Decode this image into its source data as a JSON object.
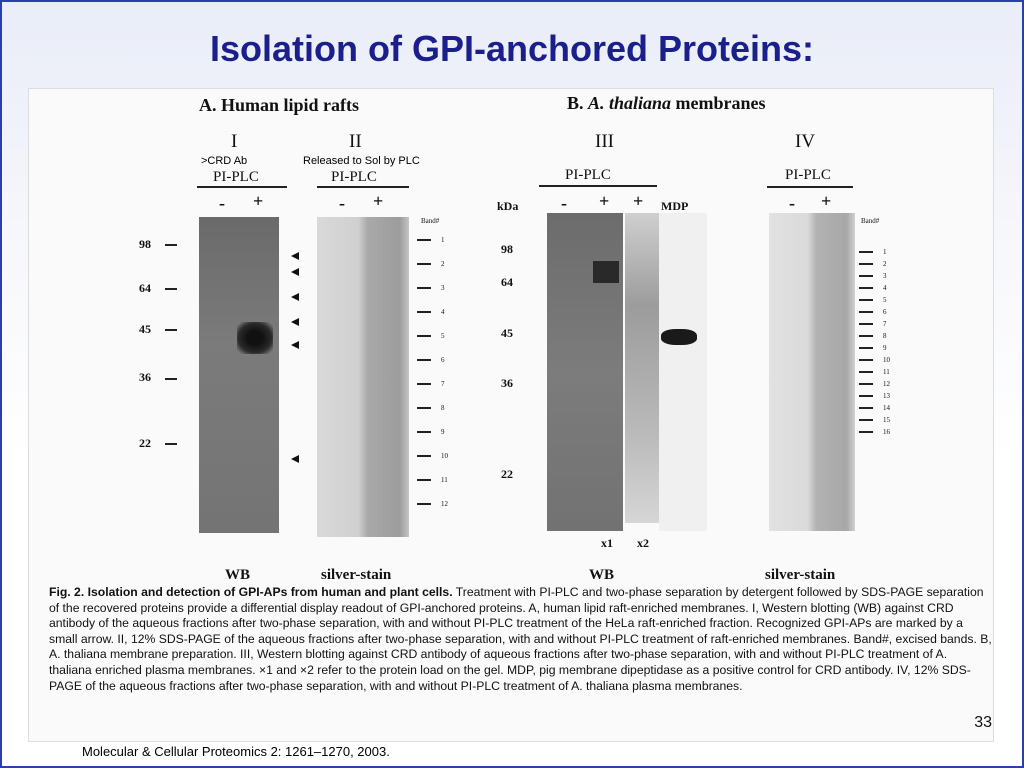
{
  "slide": {
    "title": "Isolation of GPI-anchored Proteins:",
    "page_number": "33",
    "source": "Molecular & Cellular Proteomics 2: 1261–1270, 2003."
  },
  "figure": {
    "panel_a_title": "A. Human lipid rafts",
    "panel_b_prefix": "B.",
    "panel_b_species": "A. thaliana",
    "panel_b_suffix": "membranes",
    "gels": {
      "I": {
        "label": "I",
        "treatment": "PI-PLC",
        "minus": "-",
        "plus": "+",
        "footer": "WB",
        "note": ">CRD Ab"
      },
      "II": {
        "label": "II",
        "treatment": "PI-PLC",
        "minus": "-",
        "plus": "+",
        "footer": "silver-stain",
        "note": "Released to Sol by PLC",
        "band_header": "Band#",
        "bands": [
          "1",
          "2",
          "3",
          "4",
          "5",
          "6",
          "7",
          "8",
          "9",
          "10",
          "11",
          "12"
        ]
      },
      "III": {
        "label": "III",
        "treatment": "PI-PLC",
        "minus": "-",
        "plus": "+",
        "plus2": "+",
        "mdp": "MDP",
        "kda": "kDa",
        "footer": "WB",
        "load1": "x1",
        "load2": "x2"
      },
      "IV": {
        "label": "IV",
        "treatment": "PI-PLC",
        "minus": "-",
        "plus": "+",
        "footer": "silver-stain",
        "band_header": "Band#",
        "bands": [
          "1",
          "2",
          "3",
          "4",
          "5",
          "6",
          "7",
          "8",
          "9",
          "10",
          "11",
          "12",
          "13",
          "14",
          "15",
          "16"
        ]
      }
    },
    "markers_a": [
      "98",
      "64",
      "45",
      "36",
      "22"
    ],
    "markers_b": [
      "98",
      "64",
      "45",
      "36",
      "22"
    ],
    "caption": {
      "fig_label": "Fig. 2.",
      "fig_title": "Isolation and detection of GPI-APs from human and plant cells.",
      "body": "Treatment with PI-PLC and two-phase separation by detergent followed by SDS-PAGE separation of the recovered proteins provide a differential display readout of GPI-anchored proteins. A, human lipid raft-enriched membranes. I, Western blotting (WB) against CRD antibody of the aqueous fractions after two-phase separation, with and without PI-PLC treatment of the HeLa raft-enriched fraction. Recognized GPI-APs are marked by a small arrow. II, 12% SDS-PAGE of the aqueous fractions after two-phase separation, with and without PI-PLC treatment of raft-enriched membranes. Band#, excised bands. B, A. thaliana membrane preparation. III, Western blotting against CRD antibody of aqueous fractions after two-phase separation, with and without PI-PLC treatment of A. thaliana enriched plasma membranes. ×1 and ×2 refer to the protein load on the gel. MDP, pig membrane dipeptidase as a positive control for CRD antibody. IV, 12% SDS-PAGE of the aqueous fractions after two-phase separation, with and without PI-PLC treatment of A. thaliana plasma membranes."
    }
  }
}
